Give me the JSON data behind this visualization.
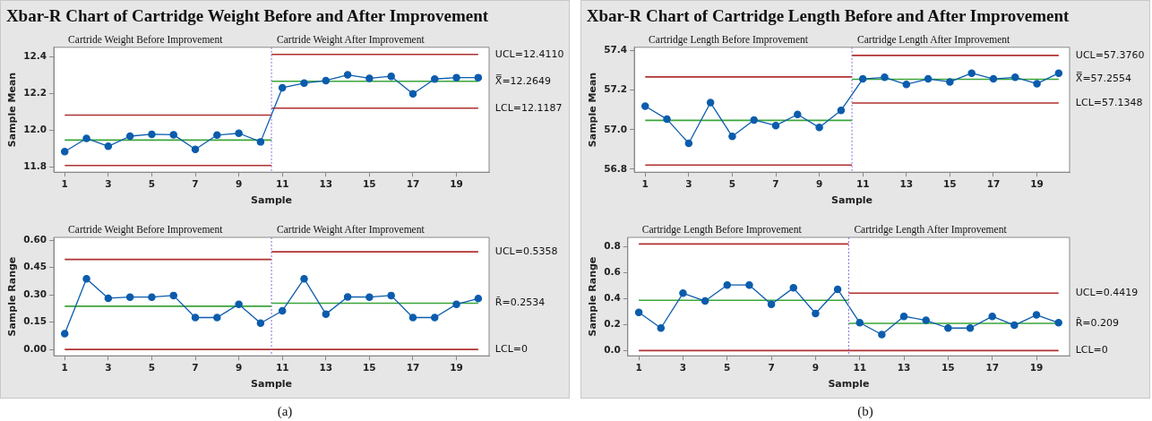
{
  "chart_data": [
    {
      "type": "line",
      "title": "Xbar-R Chart of Cartridge Weight Before and After Improvement",
      "xlabel": "Sample",
      "ylabel": "Sample Mean",
      "x": [
        1,
        2,
        3,
        4,
        5,
        6,
        7,
        8,
        9,
        10,
        11,
        12,
        13,
        14,
        15,
        16,
        17,
        18,
        19,
        20
      ],
      "xlim": [
        0.5,
        20.5
      ],
      "xticks": [
        1,
        3,
        5,
        7,
        9,
        11,
        13,
        15,
        17,
        19
      ],
      "ylim": [
        11.77,
        12.45
      ],
      "yticks": [
        11.8,
        {
          "value": 12,
          "label": "12.0"
        },
        12.2,
        12.4
      ],
      "marker": "circle",
      "grid": false,
      "legend": false,
      "series": [
        {
          "color": "#0b5cad",
          "values": [
            11.882,
            11.954,
            11.911,
            11.966,
            11.976,
            11.974,
            11.894,
            11.972,
            11.982,
            11.935,
            12.23,
            12.255,
            12.269,
            12.3,
            12.281,
            12.292,
            12.197,
            12.277,
            12.285,
            12.285
          ]
        },
        {
          "type": "line",
          "color": "#b03030",
          "marker": "none",
          "x": [
            1,
            10.5
          ],
          "values": [
            12.081,
            12.081
          ]
        },
        {
          "type": "line",
          "color": "#3aa53a",
          "marker": "none",
          "x": [
            1,
            10.5
          ],
          "values": [
            11.945,
            11.945
          ]
        },
        {
          "type": "line",
          "color": "#b03030",
          "marker": "none",
          "x": [
            1,
            10.5
          ],
          "values": [
            11.806,
            11.806
          ]
        },
        {
          "type": "line",
          "name": "UCL=12.4110",
          "color": "#b03030",
          "marker": "none",
          "x": [
            10.5,
            20
          ],
          "values": [
            12.411,
            12.411
          ]
        },
        {
          "type": "line",
          "name": "X̿=12.2649",
          "color": "#3aa53a",
          "marker": "none",
          "x": [
            10.5,
            20
          ],
          "values": [
            12.2649,
            12.2649
          ]
        },
        {
          "type": "line",
          "name": "LCL=12.1187",
          "color": "#b03030",
          "marker": "none",
          "x": [
            10.5,
            20
          ],
          "values": [
            12.1187,
            12.1187
          ]
        }
      ],
      "ref_lines": [
        {
          "axis": "x",
          "value": 10.5,
          "color": "#8c6be0",
          "line_style": "dotted"
        }
      ],
      "annotations": [
        "Cartride Weight Before Improvement",
        "Cartride Weight After Improvement"
      ]
    },
    {
      "type": "line",
      "title": "Xbar-R Chart of Cartridge Length Before and After Improvement",
      "xlabel": "Sample",
      "ylabel": "Sample Mean",
      "x": [
        1,
        2,
        3,
        4,
        5,
        6,
        7,
        8,
        9,
        10,
        11,
        12,
        13,
        14,
        15,
        16,
        17,
        18,
        19,
        20
      ],
      "xlim": [
        0.5,
        20.5
      ],
      "xticks": [
        1,
        3,
        5,
        7,
        9,
        11,
        13,
        15,
        17,
        19
      ],
      "ylim": [
        56.785,
        57.417
      ],
      "yticks": [
        56.8,
        {
          "value": 57,
          "label": "57.0"
        },
        57.2,
        57.4
      ],
      "marker": "circle",
      "grid": false,
      "legend": false,
      "series": [
        {
          "color": "#0b5cad",
          "values": [
            57.119,
            57.053,
            56.931,
            57.137,
            56.966,
            57.049,
            57.021,
            57.077,
            57.011,
            57.098,
            57.257,
            57.265,
            57.229,
            57.257,
            57.242,
            57.286,
            57.257,
            57.265,
            57.233,
            57.286
          ]
        },
        {
          "type": "line",
          "color": "#b03030",
          "marker": "none",
          "x": [
            1,
            10.5
          ],
          "values": [
            57.267,
            57.267
          ]
        },
        {
          "type": "line",
          "color": "#3aa53a",
          "marker": "none",
          "x": [
            1,
            10.5
          ],
          "values": [
            57.047,
            57.047
          ]
        },
        {
          "type": "line",
          "color": "#b03030",
          "marker": "none",
          "x": [
            1,
            10.5
          ],
          "values": [
            56.821,
            56.821
          ]
        },
        {
          "type": "line",
          "name": "UCL=57.3760",
          "color": "#b03030",
          "marker": "none",
          "x": [
            10.5,
            20
          ],
          "values": [
            57.376,
            57.376
          ]
        },
        {
          "type": "line",
          "name": "X̿=57.2554",
          "color": "#3aa53a",
          "marker": "none",
          "x": [
            10.5,
            20
          ],
          "values": [
            57.2554,
            57.2554
          ]
        },
        {
          "type": "line",
          "name": "LCL=57.1348",
          "color": "#b03030",
          "marker": "none",
          "x": [
            10.5,
            20
          ],
          "values": [
            57.1348,
            57.1348
          ]
        }
      ],
      "ref_lines": [
        {
          "axis": "x",
          "value": 10.5,
          "color": "#8c6be0",
          "line_style": "dotted"
        }
      ],
      "annotations": [
        "Cartridge Length Before Improvement",
        "Cartridge Length After Improvement"
      ]
    },
    {
      "type": "line",
      "xlabel": "Sample",
      "ylabel": "Sample Range",
      "x": [
        1,
        2,
        3,
        4,
        5,
        6,
        7,
        8,
        9,
        10,
        11,
        12,
        13,
        14,
        15,
        16,
        17,
        18,
        19,
        20
      ],
      "xlim": [
        0.5,
        20.5
      ],
      "xticks": [
        1,
        3,
        5,
        7,
        9,
        11,
        13,
        15,
        17,
        19
      ],
      "ylim": [
        -0.035,
        0.615
      ],
      "yticks": [
        {
          "value": 0,
          "label": "0.00"
        },
        {
          "value": 0.15,
          "label": "0.15"
        },
        {
          "value": 0.3,
          "label": "0.30"
        },
        {
          "value": 0.45,
          "label": "0.45"
        },
        {
          "value": 0.6,
          "label": "0.60"
        }
      ],
      "marker": "circle",
      "grid": false,
      "legend": false,
      "series": [
        {
          "color": "#0b5cad",
          "values": [
            0.087,
            0.388,
            0.281,
            0.287,
            0.287,
            0.296,
            0.175,
            0.175,
            0.248,
            0.144,
            0.212,
            0.388,
            0.194,
            0.288,
            0.287,
            0.296,
            0.175,
            0.175,
            0.248,
            0.279
          ]
        },
        {
          "type": "line",
          "color": "#b03030",
          "marker": "none",
          "x": [
            1,
            10.5
          ],
          "values": [
            0.494,
            0.494
          ]
        },
        {
          "type": "line",
          "color": "#3aa53a",
          "marker": "none",
          "x": [
            1,
            10.5
          ],
          "values": [
            0.237,
            0.237
          ]
        },
        {
          "type": "line",
          "name": "LCL=0",
          "color": "#b03030",
          "marker": "none",
          "x": [
            1,
            20
          ],
          "values": [
            0,
            0
          ]
        },
        {
          "type": "line",
          "name": "UCL=0.5358",
          "color": "#b03030",
          "marker": "none",
          "x": [
            10.5,
            20
          ],
          "values": [
            0.5358,
            0.5358
          ]
        },
        {
          "type": "line",
          "name": "R̄=0.2534",
          "color": "#3aa53a",
          "marker": "none",
          "x": [
            10.5,
            20
          ],
          "values": [
            0.2534,
            0.2534
          ]
        }
      ],
      "ref_lines": [
        {
          "axis": "x",
          "value": 10.5,
          "color": "#8c6be0",
          "line_style": "dotted"
        }
      ],
      "annotations": [
        "Cartride Weight Before Improvement",
        "Cartride Weight After Improvement",
        "(a)"
      ]
    },
    {
      "type": "line",
      "xlabel": "Sample",
      "ylabel": "Sample Range",
      "x": [
        1,
        2,
        3,
        4,
        5,
        6,
        7,
        8,
        9,
        10,
        11,
        12,
        13,
        14,
        15,
        16,
        17,
        18,
        19,
        20
      ],
      "xlim": [
        0.5,
        20.5
      ],
      "xticks": [
        1,
        3,
        5,
        7,
        9,
        11,
        13,
        15,
        17,
        19
      ],
      "ylim": [
        -0.04,
        0.87
      ],
      "yticks": [
        {
          "value": 0,
          "label": "0.0"
        },
        0.2,
        0.4,
        0.6,
        0.8
      ],
      "marker": "circle",
      "grid": false,
      "legend": false,
      "series": [
        {
          "color": "#0b5cad",
          "values": [
            0.293,
            0.173,
            0.441,
            0.381,
            0.504,
            0.504,
            0.356,
            0.482,
            0.285,
            0.471,
            0.214,
            0.123,
            0.263,
            0.233,
            0.173,
            0.173,
            0.263,
            0.195,
            0.274,
            0.214
          ]
        },
        {
          "type": "line",
          "color": "#b03030",
          "marker": "none",
          "x": [
            1,
            10.5
          ],
          "values": [
            0.819,
            0.819
          ]
        },
        {
          "type": "line",
          "color": "#3aa53a",
          "marker": "none",
          "x": [
            1,
            10.5
          ],
          "values": [
            0.386,
            0.386
          ]
        },
        {
          "type": "line",
          "name": "LCL=0",
          "color": "#b03030",
          "marker": "none",
          "x": [
            1,
            20
          ],
          "values": [
            0,
            0
          ]
        },
        {
          "type": "line",
          "name": "UCL=0.4419",
          "color": "#b03030",
          "marker": "none",
          "x": [
            10.5,
            20
          ],
          "values": [
            0.4419,
            0.4419
          ]
        },
        {
          "type": "line",
          "name": "R̄=0.209",
          "color": "#3aa53a",
          "marker": "none",
          "x": [
            10.5,
            20
          ],
          "values": [
            0.209,
            0.209
          ]
        }
      ],
      "ref_lines": [
        {
          "axis": "x",
          "value": 10.5,
          "color": "#8c6be0",
          "line_style": "dotted"
        }
      ],
      "annotations": [
        "Cartridge Length Before Improvement",
        "Cartridge Length After Improvement",
        "(b)"
      ]
    }
  ]
}
